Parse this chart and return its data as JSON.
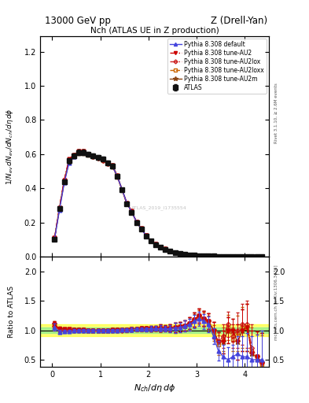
{
  "title_top": "13000 GeV pp",
  "title_right": "Z (Drell-Yan)",
  "plot_title": "Nch (ATLAS UE in Z production)",
  "xlabel": "$N_{ch}/d\\eta\\,d\\phi$",
  "ylabel_main": "$1/N_{ev}\\,dN_{ev}/dN_{ch}/d\\eta\\,d\\phi$",
  "ylabel_ratio": "Ratio to ATLAS",
  "right_label_main": "Rivet 3.1.10, ≥ 2.6M events",
  "right_label_ratio": "mcplots.cern.ch [arXiv:1306.3436]",
  "watermark": "ATLAS_2019_I1735554",
  "x_data": [
    0.05,
    0.15,
    0.25,
    0.35,
    0.45,
    0.55,
    0.65,
    0.75,
    0.85,
    0.95,
    1.05,
    1.15,
    1.25,
    1.35,
    1.45,
    1.55,
    1.65,
    1.75,
    1.85,
    1.95,
    2.05,
    2.15,
    2.25,
    2.35,
    2.45,
    2.55,
    2.65,
    2.75,
    2.85,
    2.95,
    3.05,
    3.15,
    3.25,
    3.35,
    3.45,
    3.55,
    3.65,
    3.75,
    3.85,
    3.95,
    4.05,
    4.15,
    4.25,
    4.35
  ],
  "atlas_y": [
    0.1,
    0.28,
    0.44,
    0.56,
    0.59,
    0.61,
    0.61,
    0.6,
    0.59,
    0.58,
    0.57,
    0.55,
    0.53,
    0.47,
    0.39,
    0.31,
    0.26,
    0.2,
    0.16,
    0.12,
    0.09,
    0.07,
    0.055,
    0.042,
    0.032,
    0.024,
    0.018,
    0.013,
    0.01,
    0.007,
    0.005,
    0.004,
    0.003,
    0.0022,
    0.0015,
    0.001,
    0.0007,
    0.0005,
    0.0003,
    0.0002,
    0.00015,
    0.0001,
    7e-05,
    4e-05
  ],
  "atlas_yerr": [
    0.006,
    0.01,
    0.012,
    0.014,
    0.015,
    0.015,
    0.015,
    0.014,
    0.014,
    0.014,
    0.013,
    0.013,
    0.012,
    0.011,
    0.01,
    0.009,
    0.008,
    0.006,
    0.005,
    0.004,
    0.004,
    0.003,
    0.003,
    0.002,
    0.002,
    0.002,
    0.0015,
    0.0012,
    0.001,
    0.0008,
    0.0006,
    0.0005,
    0.0004,
    0.0003,
    0.00025,
    0.0002,
    0.00015,
    0.0001,
    9e-05,
    7e-05,
    6e-05,
    4e-05,
    3e-05,
    2e-05
  ],
  "py_default_ratio": [
    1.05,
    0.97,
    0.98,
    0.98,
    0.99,
    1.0,
    1.0,
    1.0,
    1.0,
    1.0,
    1.0,
    1.0,
    1.0,
    1.0,
    1.01,
    1.01,
    1.01,
    1.02,
    1.02,
    1.02,
    1.03,
    1.03,
    1.03,
    1.03,
    1.03,
    1.04,
    1.05,
    1.07,
    1.1,
    1.15,
    1.2,
    1.15,
    1.1,
    0.9,
    0.65,
    0.55,
    0.5,
    0.55,
    0.6,
    0.55,
    0.55,
    0.5,
    0.5,
    0.5
  ],
  "py_AU2_ratio": [
    1.1,
    1.02,
    1.02,
    1.02,
    1.01,
    1.01,
    1.01,
    1.0,
    1.0,
    1.0,
    1.0,
    1.0,
    1.01,
    1.01,
    1.01,
    1.01,
    1.02,
    1.02,
    1.03,
    1.03,
    1.03,
    1.03,
    1.04,
    1.04,
    1.04,
    1.05,
    1.06,
    1.08,
    1.12,
    1.18,
    1.25,
    1.2,
    1.15,
    1.0,
    0.8,
    0.8,
    1.0,
    1.0,
    0.8,
    1.0,
    1.05,
    0.6,
    0.55,
    0.45
  ],
  "py_AU2lox_ratio": [
    1.08,
    1.01,
    1.0,
    1.0,
    1.0,
    1.0,
    1.0,
    1.0,
    0.99,
    0.99,
    0.99,
    0.99,
    1.0,
    1.0,
    1.0,
    1.01,
    1.01,
    1.02,
    1.02,
    1.02,
    1.02,
    1.03,
    1.03,
    1.03,
    1.04,
    1.05,
    1.06,
    1.08,
    1.12,
    1.18,
    1.25,
    1.2,
    1.15,
    1.0,
    0.8,
    0.9,
    1.1,
    0.9,
    1.0,
    1.1,
    1.1,
    0.7,
    0.55,
    0.45
  ],
  "py_AU2loxx_ratio": [
    1.06,
    0.99,
    0.99,
    0.99,
    0.99,
    0.99,
    0.99,
    0.99,
    0.99,
    0.99,
    0.99,
    0.99,
    0.99,
    0.99,
    1.0,
    1.0,
    1.01,
    1.01,
    1.01,
    1.02,
    1.02,
    1.02,
    1.02,
    1.03,
    1.03,
    1.04,
    1.05,
    1.07,
    1.1,
    1.16,
    1.22,
    1.18,
    1.12,
    0.95,
    0.75,
    0.85,
    1.05,
    0.85,
    0.95,
    1.05,
    1.05,
    0.65,
    0.5,
    0.42
  ],
  "py_AU2m_ratio": [
    1.1,
    1.02,
    1.01,
    1.01,
    1.01,
    1.01,
    1.01,
    1.0,
    1.0,
    1.0,
    1.0,
    1.0,
    1.01,
    1.01,
    1.01,
    1.01,
    1.02,
    1.02,
    1.03,
    1.03,
    1.03,
    1.03,
    1.04,
    1.04,
    1.04,
    1.05,
    1.06,
    1.08,
    1.12,
    1.18,
    1.25,
    1.2,
    1.15,
    1.0,
    0.8,
    0.8,
    1.0,
    1.0,
    0.8,
    1.0,
    1.05,
    0.6,
    0.55,
    0.45
  ],
  "color_default": "#4444dd",
  "color_AU2": "#cc0000",
  "color_AU2lox": "#cc2222",
  "color_AU2loxx": "#cc6600",
  "color_AU2m": "#8B4513",
  "color_atlas": "#111111",
  "green_band_inner": 0.05,
  "green_band_outer": 0.1,
  "ylim_main": [
    0.0,
    1.29
  ],
  "ylim_ratio": [
    0.38,
    2.25
  ],
  "xlim": [
    -0.25,
    4.5
  ],
  "main_yticks": [
    0.0,
    0.2,
    0.4,
    0.6,
    0.8,
    1.0,
    1.2
  ],
  "ratio_yticks": [
    0.5,
    1.0,
    1.5,
    2.0
  ]
}
